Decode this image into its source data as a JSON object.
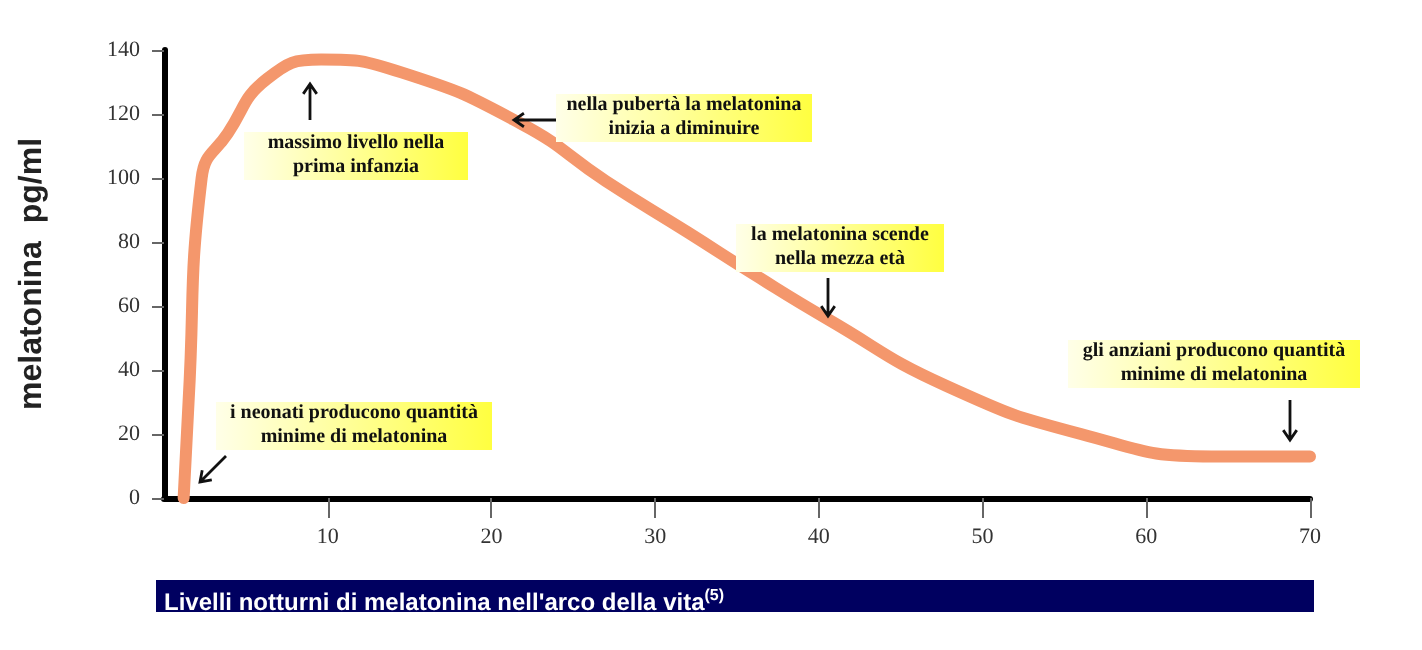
{
  "chart_data": {
    "type": "line",
    "title": "Livelli notturni di melatonina nell'arco della vita$^{(5)}$",
    "ylabel": "melatonina  pg/ml",
    "x": [
      1.2,
      1.5,
      2.3,
      3.9,
      6.3,
      9.6,
      14.5,
      21.8,
      27,
      32,
      36,
      40.5,
      47.8,
      56,
      64,
      70
    ],
    "values": [
      0,
      30,
      100,
      114,
      131,
      137,
      133,
      117,
      99,
      83,
      70,
      56,
      35,
      20,
      13,
      13
    ],
    "color": "#f4976c",
    "marker": "none",
    "line_style": "solid",
    "grid": false,
    "xlim": [
      0,
      70
    ],
    "xticks": [
      10,
      20,
      30,
      40,
      50,
      60,
      70
    ],
    "ylim": [
      0,
      140
    ],
    "yticks": [
      0,
      20,
      40,
      60,
      80,
      100,
      120,
      140
    ],
    "annotations": [
      "massimo livello nella prima infanzia",
      "nella pubertà la melatonina inizia a diminuire",
      "la melatonina scende nella mezza età",
      "gli anziani producono quantità minime di melatonina",
      "i neonati producono quantità minime di melatonina"
    ]
  }
}
